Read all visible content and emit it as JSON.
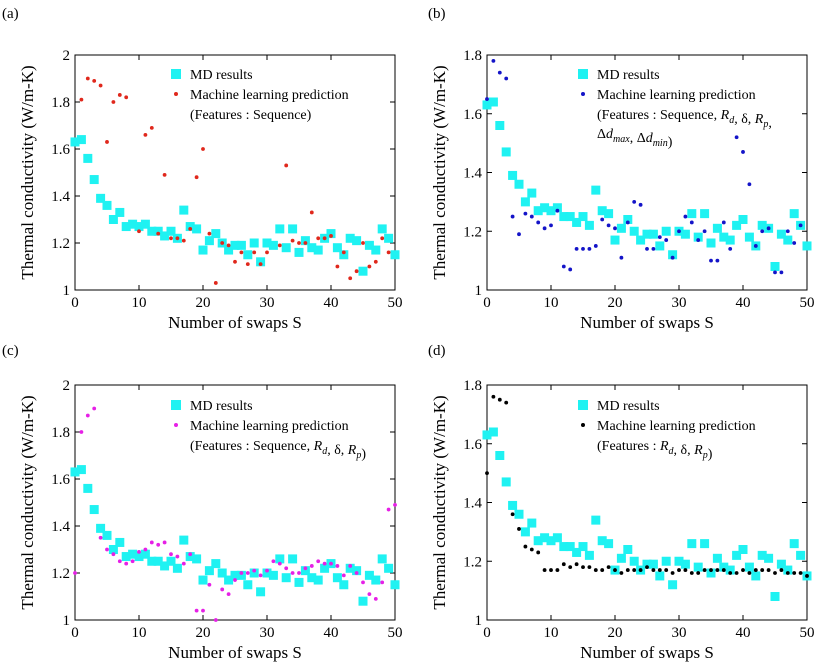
{
  "colors": {
    "md": "#1ff2f2",
    "ml_a": "#e0281c",
    "ml_b": "#1414c8",
    "ml_c": "#e620e6",
    "ml_d": "#000000"
  },
  "chart_data": [
    {
      "panel": "(a)",
      "type": "scatter",
      "xlabel": "Number of swaps S",
      "ylabel": "Thermal conductivity (W/m-K)",
      "xlim": [
        0,
        50
      ],
      "ylim": [
        1,
        2
      ],
      "xticks": [
        0,
        10,
        20,
        30,
        40,
        50
      ],
      "yticks": [
        1,
        1.2,
        1.4,
        1.6,
        1.8,
        2
      ],
      "legend": {
        "placement": "top-right",
        "entries": [
          "MD results",
          "Machine learning prediction"
        ],
        "features": "(Features : Sequence)"
      },
      "series": [
        {
          "name": "MD results",
          "marker": "square",
          "color_key": "md",
          "x": [
            0,
            1,
            2,
            3,
            4,
            5,
            6,
            7,
            8,
            9,
            10,
            11,
            12,
            13,
            14,
            15,
            16,
            17,
            18,
            19,
            20,
            21,
            22,
            23,
            24,
            25,
            26,
            27,
            28,
            29,
            30,
            31,
            32,
            33,
            34,
            35,
            36,
            37,
            38,
            39,
            40,
            41,
            42,
            43,
            44,
            45,
            46,
            47,
            48,
            49,
            50
          ],
          "y": [
            1.63,
            1.64,
            1.56,
            1.47,
            1.39,
            1.36,
            1.3,
            1.33,
            1.27,
            1.28,
            1.27,
            1.28,
            1.25,
            1.25,
            1.23,
            1.25,
            1.22,
            1.34,
            1.27,
            1.26,
            1.17,
            1.21,
            1.24,
            1.2,
            1.17,
            1.19,
            1.19,
            1.15,
            1.2,
            1.12,
            1.2,
            1.19,
            1.26,
            1.18,
            1.26,
            1.16,
            1.21,
            1.18,
            1.17,
            1.22,
            1.24,
            1.18,
            1.15,
            1.22,
            1.21,
            1.08,
            1.19,
            1.17,
            1.26,
            1.22,
            1.15
          ]
        },
        {
          "name": "Machine learning prediction",
          "marker": "dot",
          "color_key": "ml_a",
          "x": [
            1,
            2,
            3,
            4,
            5,
            6,
            7,
            8,
            10,
            11,
            12,
            13,
            14,
            15,
            16,
            17,
            18,
            19,
            20,
            21,
            22,
            23,
            24,
            25,
            26,
            27,
            28,
            29,
            30,
            32,
            33,
            34,
            35,
            36,
            37,
            38,
            39,
            40,
            41,
            42,
            43,
            44,
            45,
            46,
            47,
            48,
            49
          ],
          "y": [
            1.81,
            1.9,
            1.89,
            1.87,
            1.63,
            1.8,
            1.83,
            1.82,
            1.25,
            1.66,
            1.69,
            1.24,
            1.49,
            1.22,
            1.22,
            1.21,
            1.26,
            1.48,
            1.6,
            1.24,
            1.03,
            1.2,
            1.19,
            1.12,
            1.16,
            1.11,
            1.16,
            1.11,
            1.16,
            1.19,
            1.53,
            1.21,
            1.2,
            1.2,
            1.33,
            1.22,
            1.22,
            1.23,
            1.1,
            1.16,
            1.05,
            1.08,
            1.2,
            1.1,
            1.12,
            1.22,
            1.16
          ]
        }
      ]
    },
    {
      "panel": "(b)",
      "type": "scatter",
      "xlabel": "Number of swaps S",
      "ylabel": "Thermal conductivity (W/m-K)",
      "xlim": [
        0,
        50
      ],
      "ylim": [
        1,
        1.8
      ],
      "xticks": [
        0,
        10,
        20,
        30,
        40,
        50
      ],
      "yticks": [
        1,
        1.2,
        1.4,
        1.6,
        1.8
      ],
      "legend": {
        "placement": "top-right",
        "entries": [
          "MD results",
          "Machine learning prediction"
        ],
        "features": "(Features : Sequence, Rd, δ, Rp, Δdmax, Δdmin)"
      },
      "series": [
        {
          "name": "MD results",
          "marker": "square",
          "color_key": "md",
          "x": [
            0,
            1,
            2,
            3,
            4,
            5,
            6,
            7,
            8,
            9,
            10,
            11,
            12,
            13,
            14,
            15,
            16,
            17,
            18,
            19,
            20,
            21,
            22,
            23,
            24,
            25,
            26,
            27,
            28,
            29,
            30,
            31,
            32,
            33,
            34,
            35,
            36,
            37,
            38,
            39,
            40,
            41,
            42,
            43,
            44,
            45,
            46,
            47,
            48,
            49,
            50
          ],
          "y": [
            1.63,
            1.64,
            1.56,
            1.47,
            1.39,
            1.36,
            1.3,
            1.33,
            1.27,
            1.28,
            1.27,
            1.28,
            1.25,
            1.25,
            1.23,
            1.25,
            1.22,
            1.34,
            1.27,
            1.26,
            1.17,
            1.21,
            1.24,
            1.2,
            1.17,
            1.19,
            1.19,
            1.15,
            1.2,
            1.12,
            1.2,
            1.19,
            1.26,
            1.18,
            1.26,
            1.16,
            1.21,
            1.18,
            1.17,
            1.22,
            1.24,
            1.18,
            1.15,
            1.22,
            1.21,
            1.08,
            1.19,
            1.17,
            1.26,
            1.22,
            1.15
          ]
        },
        {
          "name": "Machine learning prediction",
          "marker": "dot",
          "color_key": "ml_b",
          "x": [
            0,
            1,
            2,
            3,
            4,
            5,
            6,
            7,
            8,
            9,
            10,
            11,
            12,
            13,
            14,
            15,
            16,
            17,
            18,
            19,
            20,
            21,
            22,
            23,
            24,
            25,
            26,
            27,
            28,
            29,
            30,
            31,
            32,
            33,
            34,
            35,
            36,
            37,
            38,
            39,
            40,
            41,
            42,
            43,
            44,
            45,
            46,
            47,
            48,
            49
          ],
          "y": [
            1.65,
            1.78,
            1.74,
            1.72,
            1.25,
            1.19,
            1.26,
            1.25,
            1.23,
            1.21,
            1.22,
            1.27,
            1.08,
            1.07,
            1.14,
            1.14,
            1.14,
            1.15,
            1.24,
            1.22,
            1.21,
            1.11,
            1.23,
            1.3,
            1.29,
            1.14,
            1.14,
            1.18,
            1.17,
            1.11,
            1.2,
            1.25,
            1.23,
            1.17,
            1.2,
            1.1,
            1.1,
            1.23,
            1.14,
            1.52,
            1.47,
            1.36,
            1.15,
            1.2,
            1.21,
            1.06,
            1.06,
            1.2,
            1.16,
            1.22
          ]
        }
      ]
    },
    {
      "panel": "(c)",
      "type": "scatter",
      "xlabel": "Number of swaps S",
      "ylabel": "Thermal conductivity (W/m-K)",
      "xlim": [
        0,
        50
      ],
      "ylim": [
        1,
        2
      ],
      "xticks": [
        0,
        10,
        20,
        30,
        40,
        50
      ],
      "yticks": [
        1,
        1.2,
        1.4,
        1.6,
        1.8,
        2
      ],
      "legend": {
        "placement": "top-right",
        "entries": [
          "MD results",
          "Machine learning prediction"
        ],
        "features": "(Features : Sequence, Rd, δ, Rp)"
      },
      "series": [
        {
          "name": "MD results",
          "marker": "square",
          "color_key": "md",
          "x": [
            0,
            1,
            2,
            3,
            4,
            5,
            6,
            7,
            8,
            9,
            10,
            11,
            12,
            13,
            14,
            15,
            16,
            17,
            18,
            19,
            20,
            21,
            22,
            23,
            24,
            25,
            26,
            27,
            28,
            29,
            30,
            31,
            32,
            33,
            34,
            35,
            36,
            37,
            38,
            39,
            40,
            41,
            42,
            43,
            44,
            45,
            46,
            47,
            48,
            49,
            50
          ],
          "y": [
            1.63,
            1.64,
            1.56,
            1.47,
            1.39,
            1.36,
            1.3,
            1.33,
            1.27,
            1.28,
            1.27,
            1.28,
            1.25,
            1.25,
            1.23,
            1.25,
            1.22,
            1.34,
            1.27,
            1.26,
            1.17,
            1.21,
            1.24,
            1.2,
            1.17,
            1.19,
            1.19,
            1.15,
            1.2,
            1.12,
            1.2,
            1.19,
            1.26,
            1.18,
            1.26,
            1.16,
            1.21,
            1.18,
            1.17,
            1.22,
            1.24,
            1.18,
            1.15,
            1.22,
            1.21,
            1.08,
            1.19,
            1.17,
            1.26,
            1.22,
            1.15
          ]
        },
        {
          "name": "Machine learning prediction",
          "marker": "dot",
          "color_key": "ml_c",
          "x": [
            0,
            1,
            2,
            3,
            4,
            5,
            6,
            7,
            8,
            9,
            10,
            11,
            12,
            13,
            14,
            15,
            16,
            17,
            18,
            19,
            20,
            21,
            22,
            23,
            24,
            25,
            26,
            27,
            28,
            29,
            30,
            31,
            32,
            33,
            34,
            35,
            36,
            37,
            38,
            39,
            40,
            41,
            42,
            43,
            44,
            45,
            46,
            47,
            48,
            49,
            50
          ],
          "y": [
            1.2,
            1.8,
            1.87,
            1.9,
            1.35,
            1.3,
            1.28,
            1.25,
            1.24,
            1.25,
            1.29,
            1.3,
            1.33,
            1.32,
            1.33,
            1.28,
            1.27,
            1.24,
            1.28,
            1.04,
            1.04,
            1.15,
            1.0,
            1.13,
            1.11,
            1.17,
            1.2,
            1.2,
            1.21,
            1.19,
            1.21,
            1.25,
            1.24,
            1.22,
            1.2,
            1.2,
            1.22,
            1.23,
            1.25,
            1.24,
            1.24,
            1.23,
            1.19,
            1.23,
            1.2,
            1.16,
            1.11,
            1.09,
            1.16,
            1.47,
            1.49
          ]
        }
      ]
    },
    {
      "panel": "(d)",
      "type": "scatter",
      "xlabel": "Number of swaps S",
      "ylabel": "Thermal conductivity (W/m-K)",
      "xlim": [
        0,
        50
      ],
      "ylim": [
        1,
        1.8
      ],
      "xticks": [
        0,
        10,
        20,
        30,
        40,
        50
      ],
      "yticks": [
        1,
        1.2,
        1.4,
        1.6,
        1.8
      ],
      "legend": {
        "placement": "top-right",
        "entries": [
          "MD results",
          "Machine learning prediction"
        ],
        "features": "(Features : Rd, δ, Rp)"
      },
      "series": [
        {
          "name": "MD results",
          "marker": "square",
          "color_key": "md",
          "x": [
            0,
            1,
            2,
            3,
            4,
            5,
            6,
            7,
            8,
            9,
            10,
            11,
            12,
            13,
            14,
            15,
            16,
            17,
            18,
            19,
            20,
            21,
            22,
            23,
            24,
            25,
            26,
            27,
            28,
            29,
            30,
            31,
            32,
            33,
            34,
            35,
            36,
            37,
            38,
            39,
            40,
            41,
            42,
            43,
            44,
            45,
            46,
            47,
            48,
            49,
            50
          ],
          "y": [
            1.63,
            1.64,
            1.56,
            1.47,
            1.39,
            1.36,
            1.3,
            1.33,
            1.27,
            1.28,
            1.27,
            1.28,
            1.25,
            1.25,
            1.23,
            1.25,
            1.22,
            1.34,
            1.27,
            1.26,
            1.17,
            1.21,
            1.24,
            1.2,
            1.17,
            1.19,
            1.19,
            1.15,
            1.2,
            1.12,
            1.2,
            1.19,
            1.26,
            1.18,
            1.26,
            1.16,
            1.21,
            1.18,
            1.17,
            1.22,
            1.24,
            1.18,
            1.15,
            1.22,
            1.21,
            1.08,
            1.19,
            1.17,
            1.26,
            1.22,
            1.15
          ]
        },
        {
          "name": "Machine learning prediction",
          "marker": "dot",
          "color_key": "ml_d",
          "x": [
            0,
            1,
            2,
            3,
            4,
            5,
            6,
            7,
            8,
            9,
            10,
            11,
            12,
            13,
            14,
            15,
            16,
            17,
            18,
            19,
            20,
            21,
            22,
            23,
            24,
            25,
            26,
            27,
            28,
            29,
            30,
            31,
            32,
            33,
            34,
            35,
            36,
            37,
            38,
            39,
            40,
            41,
            42,
            43,
            44,
            45,
            46,
            47,
            48,
            49,
            50
          ],
          "y": [
            1.5,
            1.76,
            1.75,
            1.74,
            1.36,
            1.31,
            1.25,
            1.24,
            1.23,
            1.17,
            1.17,
            1.17,
            1.19,
            1.18,
            1.19,
            1.18,
            1.18,
            1.17,
            1.17,
            1.18,
            1.17,
            1.16,
            1.17,
            1.17,
            1.17,
            1.18,
            1.17,
            1.17,
            1.17,
            1.16,
            1.17,
            1.17,
            1.16,
            1.16,
            1.17,
            1.17,
            1.17,
            1.17,
            1.16,
            1.16,
            1.17,
            1.16,
            1.17,
            1.17,
            1.17,
            1.16,
            1.17,
            1.16,
            1.16,
            1.16,
            1.15
          ]
        }
      ]
    }
  ]
}
